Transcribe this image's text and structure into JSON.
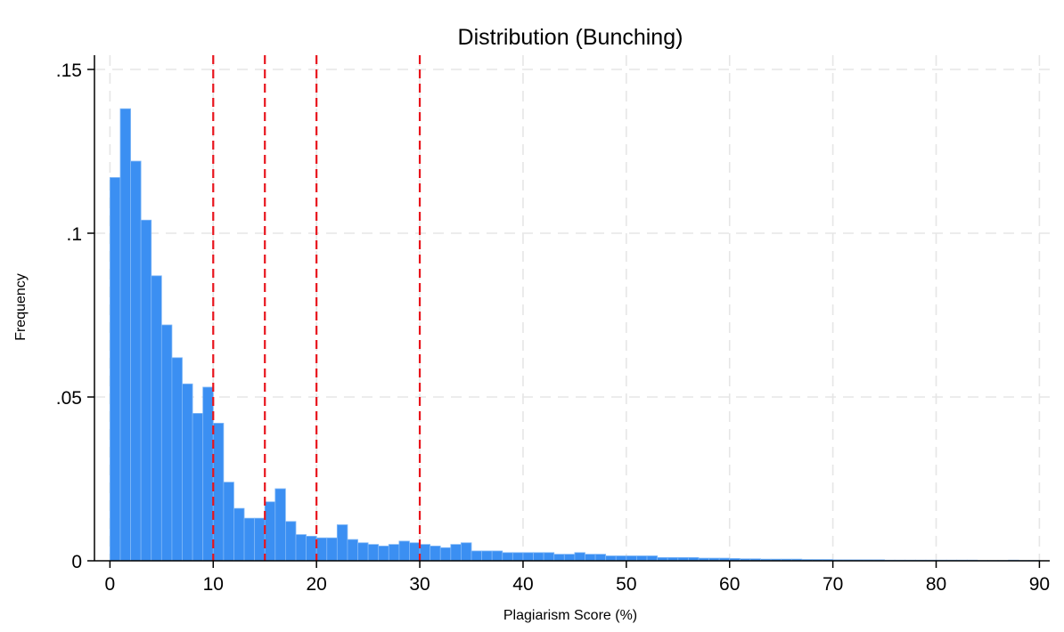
{
  "chart_data": {
    "type": "bar",
    "title": "Distribution (Bunching)",
    "xlabel": "Plagiarism Score (%)",
    "ylabel": "Frequency",
    "xlim": [
      -1.5,
      91
    ],
    "ylim": [
      0,
      0.15
    ],
    "xticks": [
      0,
      10,
      20,
      30,
      40,
      50,
      60,
      70,
      80,
      90
    ],
    "xtick_labels": [
      "0",
      "10",
      "20",
      "30",
      "40",
      "50",
      "60",
      "70",
      "80",
      "90"
    ],
    "yticks": [
      0,
      0.05,
      0.1,
      0.15
    ],
    "ytick_labels": [
      "0",
      ".05",
      ".1",
      ".15"
    ],
    "grid": true,
    "bin_width": 1,
    "bin_start": 0,
    "values": [
      0.117,
      0.138,
      0.122,
      0.104,
      0.087,
      0.072,
      0.062,
      0.054,
      0.045,
      0.053,
      0.042,
      0.024,
      0.016,
      0.013,
      0.013,
      0.018,
      0.022,
      0.012,
      0.008,
      0.0075,
      0.007,
      0.007,
      0.011,
      0.0065,
      0.0055,
      0.005,
      0.0045,
      0.005,
      0.006,
      0.0055,
      0.005,
      0.0045,
      0.004,
      0.005,
      0.0055,
      0.003,
      0.003,
      0.003,
      0.0025,
      0.0025,
      0.0025,
      0.0025,
      0.0025,
      0.002,
      0.002,
      0.0025,
      0.002,
      0.002,
      0.0015,
      0.0015,
      0.0015,
      0.0015,
      0.0015,
      0.001,
      0.001,
      0.001,
      0.001,
      0.0008,
      0.0008,
      0.0008,
      0.0007,
      0.0006,
      0.0006,
      0.0005,
      0.0005,
      0.0005,
      0.0005,
      0.0004,
      0.0004,
      0.0004,
      0.0003,
      0.0003,
      0.0003,
      0.0003,
      0.0003,
      0.0002,
      0.0002,
      0.0002,
      0.0002,
      0.0002,
      0.0002,
      0.0002,
      0.0002,
      0.0002,
      0.0001,
      0.0001,
      0.0001,
      0.0002,
      0.0001,
      0.0001
    ],
    "reference_lines": [
      10,
      15,
      20,
      30
    ],
    "colors": {
      "bars": "#3b8ff2",
      "bar_edges": "#7fb7f7",
      "reference_lines": "#e8141c",
      "grid": "#e6e6e6"
    }
  }
}
